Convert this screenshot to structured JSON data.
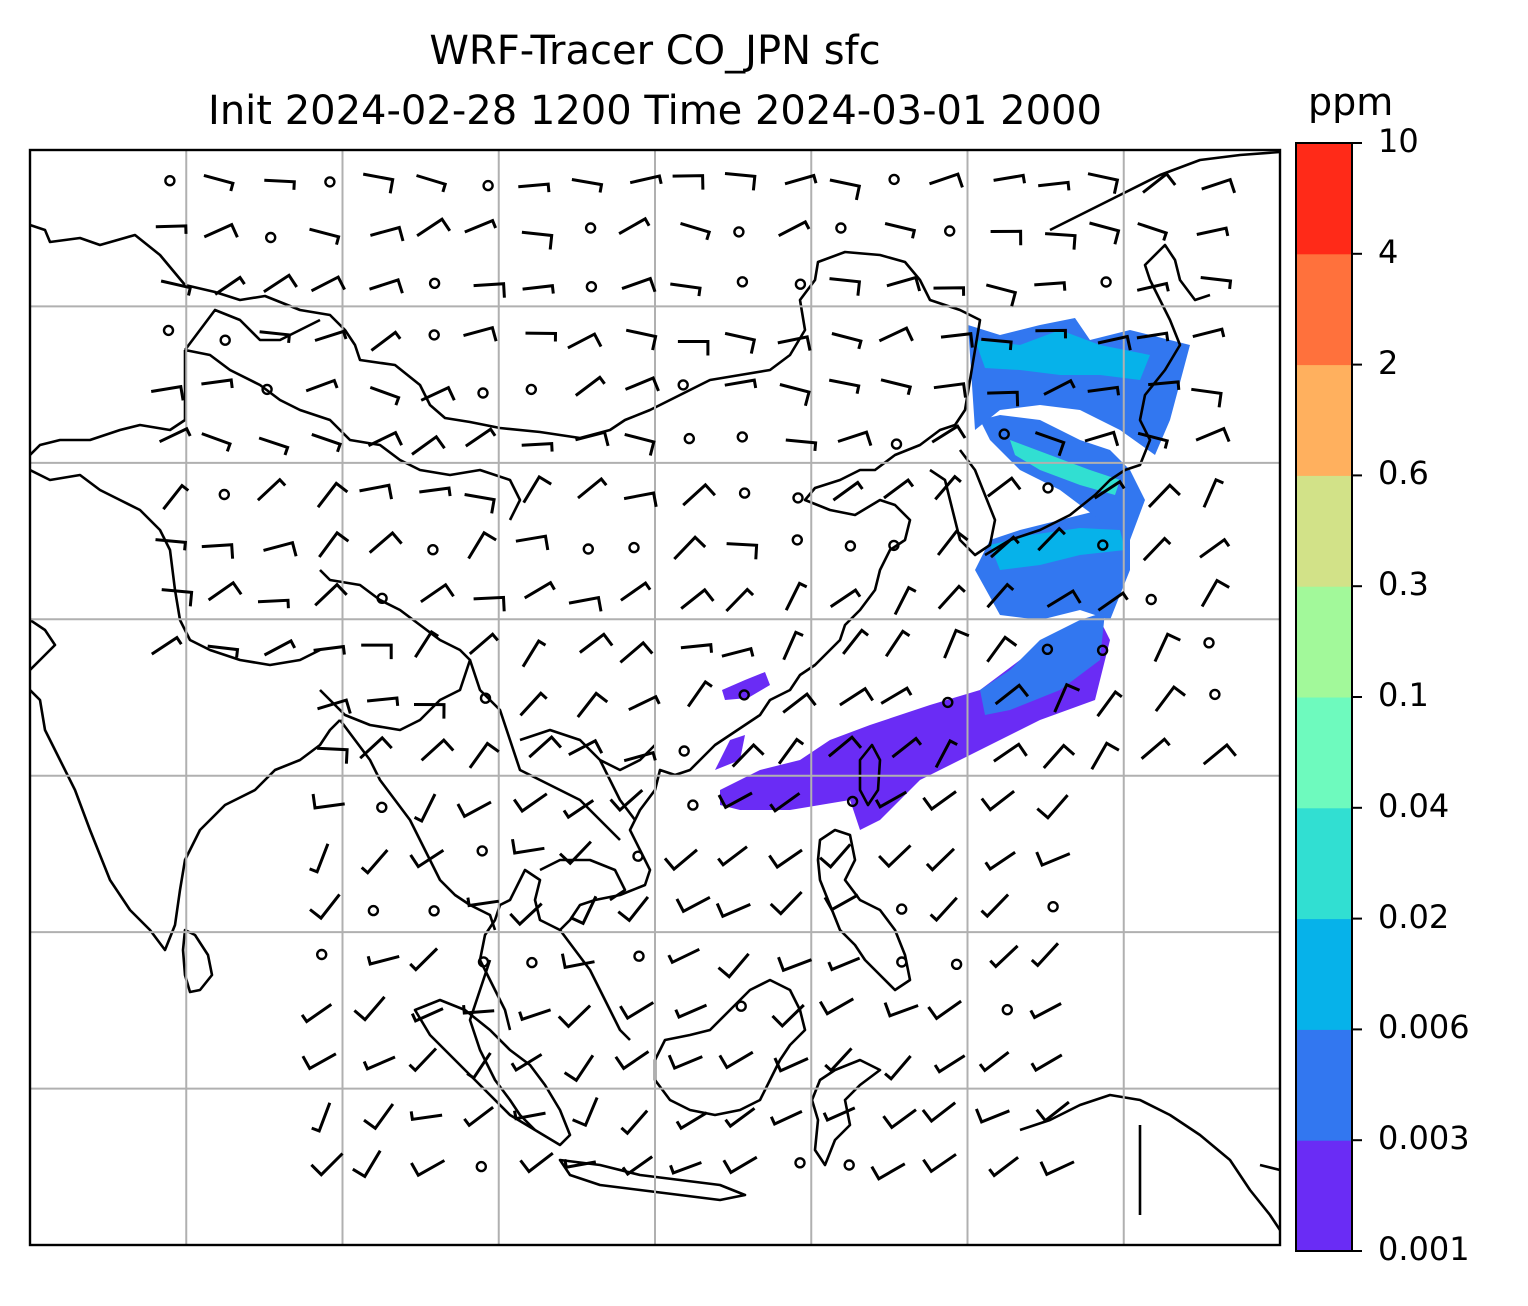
{
  "title": {
    "line1": "WRF-Tracer CO_JPN sfc",
    "line2": "Init 2024-02-28 1200 Time 2024-03-01 2000"
  },
  "colorbar": {
    "unit": "ppm",
    "levels": [
      "0.001",
      "0.003",
      "0.006",
      "0.02",
      "0.04",
      "0.1",
      "0.3",
      "0.6",
      "2",
      "4",
      "10"
    ],
    "colors": [
      "#6a2cf5",
      "#3277f0",
      "#06b2ea",
      "#31dfd2",
      "#6efabe",
      "#a2f99a",
      "#d2e288",
      "#ffb05e",
      "#ff713c",
      "#ff2a18"
    ]
  },
  "map": {
    "extent": {
      "lon": [
        60,
        140
      ],
      "lat": [
        -10,
        60
      ]
    },
    "gridlines": {
      "lon": [
        70,
        80,
        90,
        100,
        110,
        120,
        130
      ],
      "lat": [
        0,
        10,
        20,
        30,
        40,
        50
      ]
    },
    "features": [
      "coastlines",
      "country borders",
      "wind barbs",
      "CO_JPN tracer plume"
    ]
  }
}
